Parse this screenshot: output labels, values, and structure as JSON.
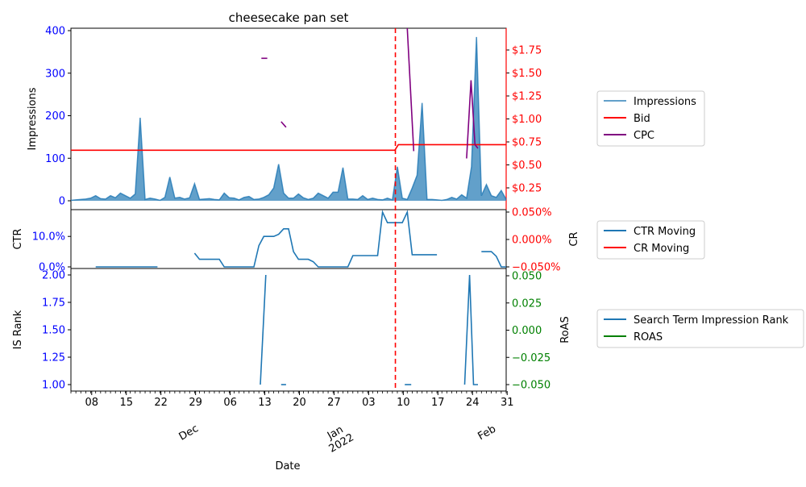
{
  "chart_data": {
    "type": "line",
    "title": "cheesecake pan set",
    "xlabel": "Date",
    "x_ticks": [
      "08",
      "15",
      "22",
      "29",
      "06",
      "13",
      "20",
      "27",
      "03",
      "10",
      "17",
      "24",
      "31"
    ],
    "month_labels": [
      "Dec",
      "Jan\n2022",
      "Feb"
    ],
    "marker_date_index": 63,
    "panels": [
      {
        "name": "top",
        "left_ylabel": "Impressions",
        "left_ylim": [
          0,
          400
        ],
        "left_yticks": [
          "0",
          "100",
          "200",
          "300",
          "400"
        ],
        "right_ylabel": "",
        "right_ylim": [
          0.0,
          2.0
        ],
        "right_yticks": [
          "$0.25",
          "$0.50",
          "$0.75",
          "$1.00",
          "$1.25",
          "$1.50",
          "$1.75"
        ],
        "series": [
          {
            "name": "Impressions",
            "axis": "left",
            "style": "area",
            "color": "#1f77b4",
            "points": [
              [
                0,
                1
              ],
              [
                1,
                2
              ],
              [
                2,
                3
              ],
              [
                3,
                4
              ],
              [
                4,
                6
              ],
              [
                5,
                12
              ],
              [
                6,
                5
              ],
              [
                7,
                4
              ],
              [
                8,
                12
              ],
              [
                9,
                7
              ],
              [
                10,
                18
              ],
              [
                11,
                12
              ],
              [
                12,
                6
              ],
              [
                13,
                16
              ],
              [
                14,
                195
              ],
              [
                15,
                3
              ],
              [
                16,
                6
              ],
              [
                17,
                4
              ],
              [
                18,
                1
              ],
              [
                19,
                8
              ],
              [
                20,
                56
              ],
              [
                21,
                6
              ],
              [
                22,
                8
              ],
              [
                23,
                4
              ],
              [
                24,
                7
              ],
              [
                25,
                40
              ],
              [
                26,
                3
              ],
              [
                27,
                4
              ],
              [
                28,
                5
              ],
              [
                29,
                3
              ],
              [
                30,
                2
              ],
              [
                31,
                18
              ],
              [
                32,
                7
              ],
              [
                33,
                6
              ],
              [
                34,
                2
              ],
              [
                35,
                8
              ],
              [
                36,
                10
              ],
              [
                37,
                3
              ],
              [
                38,
                4
              ],
              [
                39,
                8
              ],
              [
                40,
                14
              ],
              [
                41,
                30
              ],
              [
                42,
                86
              ],
              [
                43,
                18
              ],
              [
                44,
                6
              ],
              [
                45,
                6
              ],
              [
                46,
                16
              ],
              [
                47,
                7
              ],
              [
                48,
                3
              ],
              [
                49,
                6
              ],
              [
                50,
                18
              ],
              [
                51,
                12
              ],
              [
                52,
                6
              ],
              [
                53,
                20
              ],
              [
                54,
                20
              ],
              [
                55,
                78
              ],
              [
                56,
                4
              ],
              [
                57,
                4
              ],
              [
                58,
                3
              ],
              [
                59,
                12
              ],
              [
                60,
                3
              ],
              [
                61,
                6
              ],
              [
                62,
                3
              ],
              [
                63,
                2
              ],
              [
                64,
                6
              ],
              [
                65,
                2
              ],
              [
                66,
                80
              ],
              [
                67,
                6
              ],
              [
                68,
                3
              ],
              [
                69,
                30
              ],
              [
                70,
                60
              ],
              [
                71,
                230
              ],
              [
                72,
                3
              ],
              [
                73,
                3
              ],
              [
                74,
                2
              ],
              [
                75,
                1
              ],
              [
                76,
                3
              ],
              [
                77,
                8
              ],
              [
                78,
                4
              ],
              [
                79,
                14
              ],
              [
                80,
                6
              ],
              [
                81,
                80
              ],
              [
                82,
                385
              ],
              [
                83,
                12
              ],
              [
                84,
                38
              ],
              [
                85,
                12
              ],
              [
                86,
                8
              ],
              [
                87,
                24
              ],
              [
                88,
                3
              ]
            ]
          },
          {
            "name": "Bid",
            "axis": "right",
            "style": "line",
            "color": "#ff0000",
            "points": [
              [
                0,
                0.66
              ],
              [
                65.5,
                0.66
              ],
              [
                66.2,
                0.72
              ],
              [
                88,
                0.72
              ]
            ]
          },
          {
            "name": "CPC",
            "axis": "right",
            "style": "line",
            "color": "#800080",
            "segments": [
              [
                [
                  38.5,
                  1.66
                ],
                [
                  39.7,
                  1.66
                ]
              ],
              [
                [
                  42.5,
                  0.97
                ],
                [
                  43.5,
                  0.91
                ]
              ],
              [
                [
                  68,
                  2.0
                ],
                [
                  69.3,
                  0.65
                ]
              ],
              [
                [
                  80,
                  0.57
                ],
                [
                  80.9,
                  1.42
                ],
                [
                  81.7,
                  0.72
                ],
                [
                  82.3,
                  0.68
                ]
              ]
            ]
          }
        ]
      },
      {
        "name": "middle",
        "left_ylabel": "CTR",
        "left_ylim": [
          -0.2,
          18.2
        ],
        "left_yticks": [
          "0.0%",
          "10.0%"
        ],
        "right_ylabel": "CR",
        "right_ylim": [
          -0.05,
          0.05
        ],
        "right_yticks": [
          "−0.050%",
          "0.000%",
          "0.050%"
        ],
        "series": [
          {
            "name": "CTR Moving",
            "axis": "left",
            "style": "line",
            "color": "#1f77b4",
            "segments": [
              [
                [
                  5,
                  0
                ],
                [
                  17.5,
                  0
                ]
              ],
              [
                [
                  25,
                  4.5
                ],
                [
                  26,
                  2.5
                ],
                [
                  27,
                  2.5
                ],
                [
                  28,
                  2.5
                ],
                [
                  29,
                  2.5
                ],
                [
                  30,
                  2.5
                ],
                [
                  31,
                  0
                ],
                [
                  32,
                  0
                ],
                [
                  33,
                  0
                ],
                [
                  34,
                  0
                ],
                [
                  35,
                  0
                ],
                [
                  36,
                  0
                ],
                [
                  37,
                  0
                ],
                [
                  38,
                  7
                ],
                [
                  39,
                  10
                ],
                [
                  40,
                  10
                ],
                [
                  41,
                  10
                ],
                [
                  42,
                  10.7
                ],
                [
                  43,
                  12.5
                ],
                [
                  44,
                  12.5
                ],
                [
                  45,
                  5
                ],
                [
                  46,
                  2.5
                ],
                [
                  47,
                  2.5
                ],
                [
                  48,
                  2.5
                ],
                [
                  49,
                  1.7
                ],
                [
                  50,
                  0
                ],
                [
                  51,
                  0
                ],
                [
                  52,
                  0
                ],
                [
                  53,
                  0
                ],
                [
                  54,
                  0
                ],
                [
                  55,
                  0
                ],
                [
                  56,
                  0
                ],
                [
                  57,
                  3.7
                ],
                [
                  58,
                  3.7
                ],
                [
                  59,
                  3.7
                ],
                [
                  60,
                  3.7
                ],
                [
                  61,
                  3.7
                ],
                [
                  62,
                  3.7
                ],
                [
                  63,
                  18
                ],
                [
                  64,
                  14.5
                ],
                [
                  65,
                  14.5
                ],
                [
                  66,
                  14.5
                ],
                [
                  67,
                  14.5
                ],
                [
                  68,
                  18
                ],
                [
                  69,
                  4
                ],
                [
                  70,
                  4
                ],
                [
                  71,
                  4
                ],
                [
                  72,
                  4
                ],
                [
                  73,
                  4
                ],
                [
                  74,
                  4
                ]
              ],
              [
                [
                  83,
                  5
                ],
                [
                  84,
                  5
                ],
                [
                  85,
                  5
                ],
                [
                  86,
                  3.5
                ],
                [
                  87,
                  0
                ],
                [
                  88,
                  0
                ]
              ]
            ]
          },
          {
            "name": "CR Moving",
            "axis": "right",
            "style": "line",
            "color": "#ff0000",
            "segments": []
          }
        ]
      },
      {
        "name": "bottom",
        "left_ylabel": "IS Rank",
        "left_ylim": [
          0.95,
          2.05
        ],
        "left_yticks": [
          "1.00",
          "1.25",
          "1.50",
          "1.75",
          "2.00"
        ],
        "right_ylabel": "RoAS",
        "right_ylim": [
          -0.055,
          0.055
        ],
        "right_yticks": [
          "−0.050",
          "−0.025",
          "0.000",
          "0.025",
          "0.050"
        ],
        "series": [
          {
            "name": "Search Term Impression Rank",
            "axis": "left",
            "style": "line",
            "color": "#1f77b4",
            "segments": [
              [
                [
                  38.3,
                  1.0
                ],
                [
                  39.4,
                  2.0
                ]
              ],
              [
                [
                  42.5,
                  1.0
                ],
                [
                  43.5,
                  1.0
                ]
              ],
              [
                [
                  67.5,
                  1.0
                ],
                [
                  68.8,
                  1.0
                ]
              ],
              [
                [
                  79.6,
                  1.0
                ],
                [
                  80.6,
                  2.0
                ],
                [
                  81.4,
                  1.0
                ],
                [
                  82.3,
                  1.0
                ]
              ]
            ]
          },
          {
            "name": "ROAS",
            "axis": "right",
            "style": "line",
            "color": "#008000",
            "segments": []
          }
        ]
      }
    ],
    "legends": [
      {
        "placement": "right",
        "entries": [
          {
            "label": "Impressions",
            "color": "#1f77b4",
            "style": "line"
          },
          {
            "label": "Bid",
            "color": "#ff0000",
            "style": "line"
          },
          {
            "label": "CPC",
            "color": "#800080",
            "style": "line"
          }
        ]
      },
      {
        "placement": "right",
        "entries": [
          {
            "label": "CTR Moving",
            "color": "#1f77b4",
            "style": "line"
          },
          {
            "label": "CR Moving",
            "color": "#ff0000",
            "style": "line"
          }
        ]
      },
      {
        "placement": "right",
        "entries": [
          {
            "label": "Search Term Impression Rank",
            "color": "#1f77b4",
            "style": "line"
          },
          {
            "label": "ROAS",
            "color": "#008000",
            "style": "line"
          }
        ]
      }
    ],
    "colors": {
      "left_axis": "#0000ff",
      "top_right_axis": "#ff0000",
      "middle_right_axis": "#ff0000",
      "bottom_right_axis": "#008000",
      "marker_line": "#ff0000"
    },
    "grid": false
  }
}
